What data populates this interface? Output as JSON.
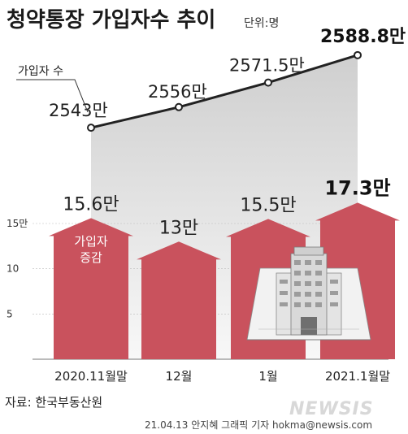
{
  "title": "청약통장 가입자수 추이",
  "unit": "단위:명",
  "source": "자료: 한국부동산원",
  "credit": "21.04.13 안지혜 그래픽 기자 hokma@newsis.com",
  "watermark": "NEWSIS",
  "colors": {
    "bar": "#c9525d",
    "line": "#222222",
    "area": "#cfcfcf",
    "background": "#ffffff"
  },
  "icons": [
    "apartment-building-icon"
  ],
  "chart_data": [
    {
      "type": "line",
      "series_tag": "가입자 수",
      "categories": [
        "2020.11월말",
        "12월",
        "1월",
        "2021.1월말"
      ],
      "values": [
        2543,
        2556,
        2571.5,
        2588.8
      ],
      "labels": [
        "2543만",
        "2556만",
        "2571.5만",
        "2588.8만"
      ],
      "ylim": [
        2500,
        2600
      ]
    },
    {
      "type": "bar",
      "series_tag": "가입자 증감",
      "categories": [
        "2020.11월말",
        "12월",
        "1월",
        "2021.1월말"
      ],
      "values": [
        15.6,
        13,
        15.5,
        17.3
      ],
      "labels": [
        "15.6만",
        "13만",
        "15.5만",
        "17.3만"
      ],
      "yticks": [
        "15만",
        "10",
        "5"
      ],
      "ytick_values": [
        15,
        10,
        5
      ],
      "ylim": [
        0,
        18
      ]
    }
  ]
}
